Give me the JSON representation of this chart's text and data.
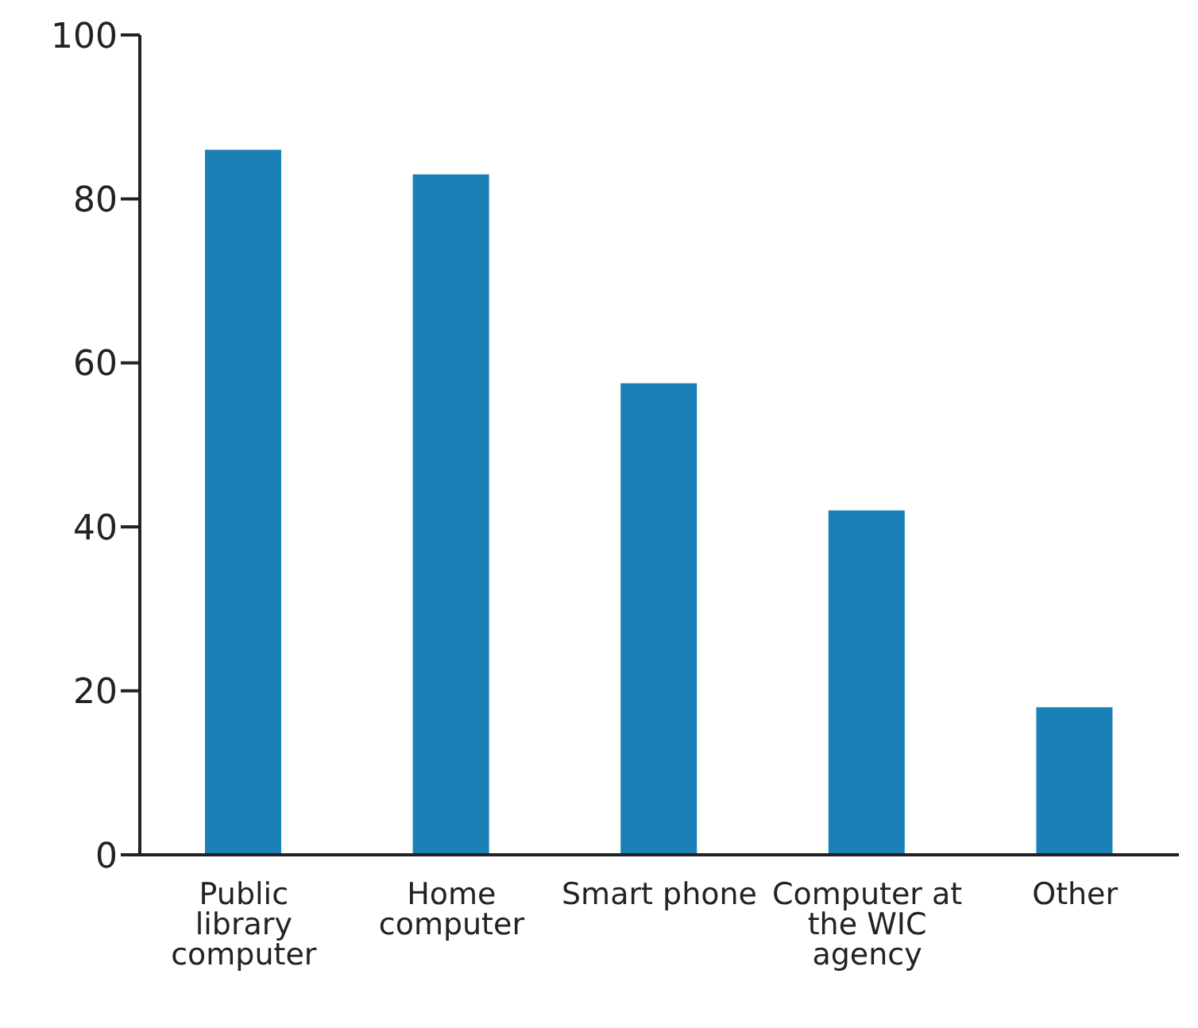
{
  "chart_data": {
    "type": "bar",
    "categories": [
      "Public library computer",
      "Home computer",
      "Smart phone",
      "Computer at the WIC agency",
      "Other"
    ],
    "values": [
      86,
      83,
      57.5,
      42,
      18
    ],
    "color": "#1a80b6",
    "ylim": [
      0,
      100
    ],
    "yticks": [
      0,
      20,
      40,
      60,
      80,
      100
    ],
    "grid": false,
    "legend": false
  }
}
